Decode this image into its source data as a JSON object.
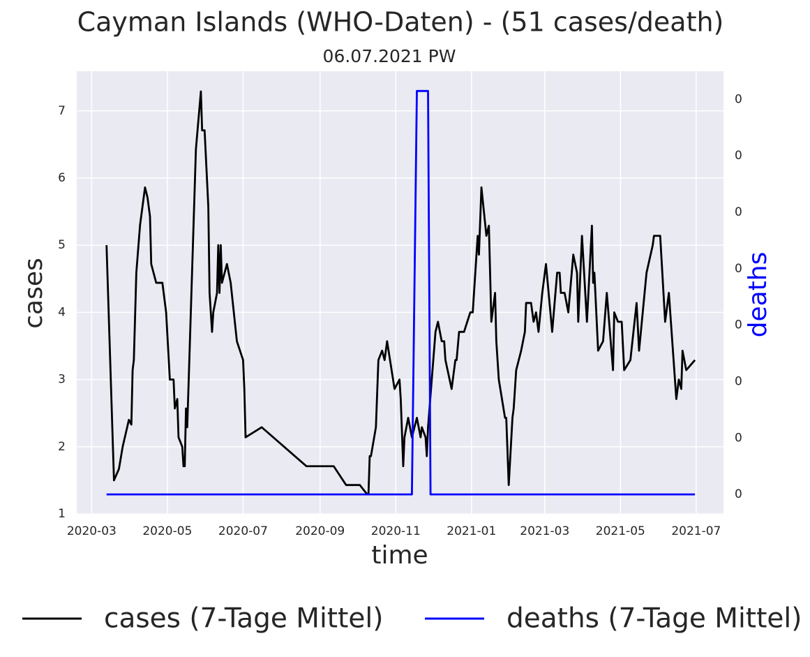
{
  "chart_data": {
    "type": "line",
    "title": "Cayman Islands (WHO-Daten) - (51 cases/death)",
    "subtitle": "06.07.2021 PW",
    "xlabel": "time",
    "ylabel": "cases",
    "y2label": "deaths",
    "y2label_color": "#0000ff",
    "grid": true,
    "legend": "bottom",
    "xlim": [
      "2020-02-18",
      "2021-07-23"
    ],
    "xticks": [
      "2020-03",
      "2020-05",
      "2020-07",
      "2020-09",
      "2020-11",
      "2021-01",
      "2021-03",
      "2021-05",
      "2021-07"
    ],
    "ylim": [
      0.99,
      7.59
    ],
    "yticks": [
      1,
      2,
      3,
      4,
      5,
      6,
      7
    ],
    "y2lim": [
      -0.00714,
      0.15
    ],
    "y2ticks": [
      {
        "value": 0,
        "label": "0"
      },
      {
        "value": 0.02,
        "label": "0"
      },
      {
        "value": 0.04,
        "label": "0"
      },
      {
        "value": 0.06,
        "label": "0"
      },
      {
        "value": 0.08,
        "label": "0"
      },
      {
        "value": 0.1,
        "label": "0"
      },
      {
        "value": 0.12,
        "label": "0"
      },
      {
        "value": 0.14,
        "label": "0"
      }
    ],
    "series": [
      {
        "name": "cases (7-Tage Mittel)",
        "color": "#000000",
        "x": [
          "2020-03-13",
          "2020-03-19",
          "2020-03-23",
          "2020-03-26",
          "2020-03-31",
          "2020-04-02",
          "2020-04-03",
          "2020-04-04",
          "2020-04-06",
          "2020-04-09",
          "2020-04-13",
          "2020-04-15",
          "2020-04-17",
          "2020-04-18",
          "2020-04-22",
          "2020-04-27",
          "2020-04-30",
          "2020-05-03",
          "2020-05-06",
          "2020-05-07",
          "2020-05-09",
          "2020-05-10",
          "2020-05-13",
          "2020-05-14",
          "2020-05-15",
          "2020-05-16",
          "2020-05-17",
          "2020-05-24",
          "2020-05-28",
          "2020-05-29",
          "2020-05-31",
          "2020-06-03",
          "2020-06-04",
          "2020-06-06",
          "2020-06-07",
          "2020-06-10",
          "2020-06-11",
          "2020-06-12",
          "2020-06-13",
          "2020-06-14",
          "2020-06-18",
          "2020-06-21",
          "2020-06-26",
          "2020-07-01",
          "2020-07-02",
          "2020-07-03",
          "2020-07-16",
          "2020-08-21",
          "2020-09-12",
          "2020-09-22",
          "2020-10-03",
          "2020-10-09",
          "2020-10-10",
          "2020-10-11",
          "2020-10-12",
          "2020-10-16",
          "2020-10-18",
          "2020-10-21",
          "2020-10-23",
          "2020-10-25",
          "2020-10-31",
          "2020-11-04",
          "2020-11-05",
          "2020-11-07",
          "2020-11-08",
          "2020-11-11",
          "2020-11-14",
          "2020-11-18",
          "2020-11-21",
          "2020-11-22",
          "2020-11-25",
          "2020-11-26",
          "2020-11-27",
          "2020-12-03",
          "2020-12-05",
          "2020-12-08",
          "2020-12-10",
          "2020-12-11",
          "2020-12-16",
          "2020-12-19",
          "2020-12-20",
          "2020-12-22",
          "2020-12-26",
          "2020-12-31",
          "2021-01-02",
          "2021-01-06",
          "2021-01-07",
          "2021-01-09",
          "2021-01-13",
          "2021-01-15",
          "2021-01-17",
          "2021-01-20",
          "2021-01-21",
          "2021-01-23",
          "2021-01-28",
          "2021-01-29",
          "2021-01-31",
          "2021-02-03",
          "2021-02-04",
          "2021-02-06",
          "2021-02-10",
          "2021-02-13",
          "2021-02-14",
          "2021-02-18",
          "2021-02-20",
          "2021-02-22",
          "2021-02-24",
          "2021-02-27",
          "2021-03-02",
          "2021-03-07",
          "2021-03-11",
          "2021-03-13",
          "2021-03-14",
          "2021-03-17",
          "2021-03-20",
          "2021-03-24",
          "2021-03-27",
          "2021-03-28",
          "2021-03-31",
          "2021-04-04",
          "2021-04-08",
          "2021-04-09",
          "2021-04-10",
          "2021-04-13",
          "2021-04-17",
          "2021-04-20",
          "2021-04-25",
          "2021-04-26",
          "2021-04-29",
          "2021-05-02",
          "2021-05-04",
          "2021-05-09",
          "2021-05-14",
          "2021-05-16",
          "2021-05-22",
          "2021-05-27",
          "2021-05-28",
          "2021-06-02",
          "2021-06-06",
          "2021-06-09",
          "2021-06-15",
          "2021-06-17",
          "2021-06-19",
          "2021-06-20",
          "2021-06-23",
          "2021-06-30"
        ],
        "values": [
          5.0,
          1.5,
          1.67,
          2.0,
          2.4,
          2.33,
          3.14,
          3.29,
          4.59,
          5.3,
          5.86,
          5.71,
          5.43,
          4.72,
          4.44,
          4.44,
          4.0,
          3.0,
          3.0,
          2.57,
          2.71,
          2.14,
          2.0,
          1.71,
          1.71,
          2.57,
          2.29,
          6.43,
          7.29,
          6.71,
          6.71,
          5.57,
          4.29,
          3.71,
          4.0,
          4.29,
          5.0,
          4.29,
          5.0,
          4.44,
          4.72,
          4.44,
          3.57,
          3.29,
          2.86,
          2.14,
          2.29,
          1.71,
          1.71,
          1.43,
          1.43,
          1.29,
          1.29,
          1.86,
          1.86,
          2.29,
          3.29,
          3.43,
          3.29,
          3.57,
          2.86,
          3.0,
          2.71,
          1.71,
          2.14,
          2.43,
          2.14,
          2.43,
          2.14,
          2.29,
          2.14,
          1.86,
          2.29,
          3.71,
          3.86,
          3.57,
          3.57,
          3.29,
          2.86,
          3.29,
          3.29,
          3.71,
          3.71,
          4.0,
          4.0,
          5.14,
          4.86,
          5.86,
          5.14,
          5.29,
          3.86,
          4.29,
          3.57,
          3.0,
          2.43,
          2.43,
          1.43,
          2.43,
          2.57,
          3.14,
          3.43,
          3.71,
          4.14,
          4.14,
          3.86,
          4.0,
          3.71,
          4.29,
          4.72,
          3.71,
          4.59,
          4.59,
          4.29,
          4.29,
          4.0,
          4.86,
          4.59,
          3.86,
          5.14,
          3.86,
          5.29,
          4.44,
          4.59,
          3.43,
          3.57,
          4.29,
          3.14,
          4.0,
          3.86,
          3.86,
          3.14,
          3.29,
          4.14,
          3.43,
          4.59,
          5.0,
          5.14,
          5.14,
          3.86,
          4.29,
          2.71,
          3.0,
          2.86,
          3.43,
          3.14,
          3.29
        ]
      },
      {
        "name": "deaths (7-Tage Mittel)",
        "color": "#0000ff",
        "axis": "y2",
        "x": [
          "2020-03-13",
          "2020-11-14",
          "2020-11-18",
          "2020-11-27",
          "2020-11-29",
          "2021-06-30"
        ],
        "values": [
          0,
          0,
          0.143,
          0.143,
          0,
          0
        ]
      }
    ]
  }
}
